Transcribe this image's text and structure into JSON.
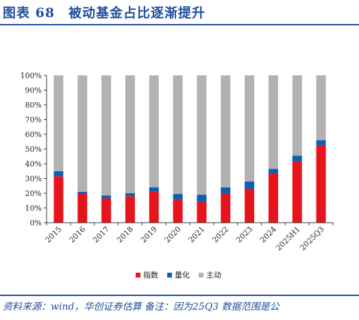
{
  "figure": {
    "title": "图表 68　被动基金占比逐渐提升",
    "source": "资料来源：wind，华创证券估算 备注：因为25Q3 数据范围是公"
  },
  "colors": {
    "指数": "#e8141c",
    "量化": "#0d5fb0",
    "主动": "#b2b2b2"
  },
  "chart_data": {
    "type": "bar",
    "stacked": true,
    "categories": [
      "2015",
      "2016",
      "2017",
      "2018",
      "2019",
      "2020",
      "2021",
      "2022",
      "2023",
      "2024",
      "2025H1",
      "2025Q3"
    ],
    "series": [
      {
        "name": "指数",
        "values": [
          31.5,
          20,
          16.5,
          18,
          21,
          15.5,
          14,
          20,
          23,
          33.5,
          41.5,
          52.5
        ]
      },
      {
        "name": "量化",
        "values": [
          3.5,
          1,
          2,
          2,
          3,
          4,
          5,
          4,
          5,
          3,
          4,
          3.5
        ]
      },
      {
        "name": "主动",
        "values": [
          65,
          79,
          81.5,
          80,
          76,
          80.5,
          81,
          76,
          72,
          63.5,
          54.5,
          44
        ]
      }
    ],
    "y_ticks": [
      "0%",
      "10%",
      "20%",
      "30%",
      "40%",
      "50%",
      "60%",
      "70%",
      "80%",
      "90%",
      "100%"
    ],
    "ylim": [
      0,
      100
    ],
    "xlabel": "",
    "ylabel": "",
    "grid": false,
    "legend_position": "bottom"
  }
}
